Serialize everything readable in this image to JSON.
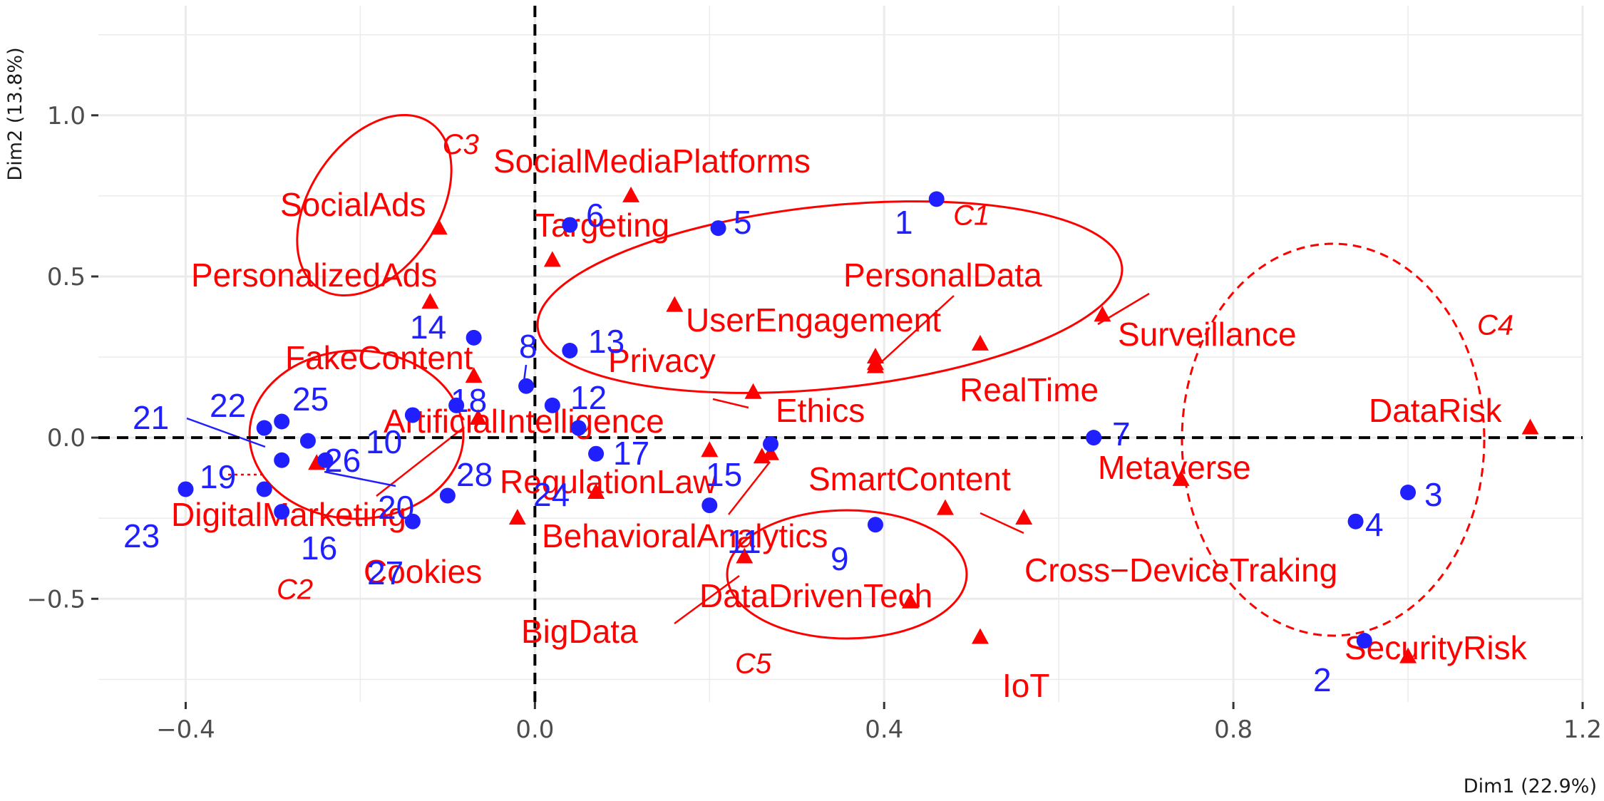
{
  "chart_data": {
    "type": "scatter",
    "xlabel": "Dim1 (22.9%)",
    "ylabel": "Dim2 (13.8%)",
    "xlim": [
      -0.5,
      1.2
    ],
    "ylim": [
      -0.82,
      1.34
    ],
    "x_ticks": [
      -0.4,
      0.0,
      0.4,
      0.8,
      1.2
    ],
    "x_tick_labels": [
      "−0.4",
      "0.0",
      "0.4",
      "0.8",
      "1.2"
    ],
    "y_ticks": [
      -0.5,
      0.0,
      0.5,
      1.0
    ],
    "y_tick_labels": [
      "−0.5",
      "0.0",
      "0.5",
      "1.0"
    ],
    "grid": true,
    "colors": {
      "words": "#ff0000",
      "documents": "#1f1fff",
      "reference_lines": "#000000",
      "panel_grid": "#ebebeb"
    },
    "words": [
      {
        "label": "SocialMediaPlatforms",
        "x": 0.11,
        "y": 0.75
      },
      {
        "label": "SocialAds",
        "x": -0.11,
        "y": 0.65
      },
      {
        "label": "Targeting",
        "x": 0.02,
        "y": 0.55
      },
      {
        "label": "PersonalizedAds",
        "x": -0.12,
        "y": 0.42
      },
      {
        "label": "UserEngagement",
        "x": 0.16,
        "y": 0.41
      },
      {
        "label": "PersonalData",
        "x": 0.39,
        "y": 0.25
      },
      {
        "label": "Surveillance",
        "x": 0.65,
        "y": 0.38
      },
      {
        "label": "RealTime",
        "x": 0.51,
        "y": 0.29
      },
      {
        "label": "FakeContent",
        "x": -0.07,
        "y": 0.19
      },
      {
        "label": "Privacy",
        "x": 0.25,
        "y": 0.14
      },
      {
        "label": "Ethics",
        "x": 0.39,
        "y": 0.22
      },
      {
        "label": "ArtificialIntelligence",
        "x": -0.065,
        "y": 0.06
      },
      {
        "label": "DataRisk",
        "x": 1.14,
        "y": 0.03
      },
      {
        "label": "RegulationLaw",
        "x": 0.2,
        "y": -0.04
      },
      {
        "label": "SmartContent",
        "x": 0.26,
        "y": -0.06
      },
      {
        "label": "Metaverse",
        "x": 0.74,
        "y": -0.13
      },
      {
        "label": "DigitalMarketing",
        "x": -0.25,
        "y": -0.08
      },
      {
        "label": "BehavioralAnalytics",
        "x": 0.07,
        "y": -0.17
      },
      {
        "label": "Cross−DeviceTraking",
        "x": 0.56,
        "y": -0.25
      },
      {
        "label": "Cookies",
        "x": -0.02,
        "y": -0.25
      },
      {
        "label": "DataDrivenTech",
        "x": 0.47,
        "y": -0.22
      },
      {
        "label": "BigData",
        "x": 0.24,
        "y": -0.37
      },
      {
        "label": "IoT",
        "x": 0.51,
        "y": -0.62
      },
      {
        "label": "SecurityRisk",
        "x": 1.0,
        "y": -0.68
      },
      {
        "label": "",
        "x": 0.43,
        "y": -0.51
      },
      {
        "label": "",
        "x": 0.39,
        "y": 0.23
      },
      {
        "label": "",
        "x": 0.27,
        "y": -0.05
      }
    ],
    "documents": [
      {
        "label": "1",
        "x": 0.46,
        "y": 0.74
      },
      {
        "label": "2",
        "x": 0.95,
        "y": -0.63
      },
      {
        "label": "3",
        "x": 1.0,
        "y": -0.17
      },
      {
        "label": "4",
        "x": 0.94,
        "y": -0.26
      },
      {
        "label": "5",
        "x": 0.21,
        "y": 0.65
      },
      {
        "label": "6",
        "x": 0.04,
        "y": 0.66
      },
      {
        "label": "7",
        "x": 0.64,
        "y": 0.0
      },
      {
        "label": "8",
        "x": -0.01,
        "y": 0.16
      },
      {
        "label": "9",
        "x": 0.39,
        "y": -0.27
      },
      {
        "label": "10",
        "x": -0.14,
        "y": 0.07
      },
      {
        "label": "11",
        "x": 0.2,
        "y": -0.21
      },
      {
        "label": "12",
        "x": 0.02,
        "y": 0.1
      },
      {
        "label": "13",
        "x": 0.04,
        "y": 0.27
      },
      {
        "label": "14",
        "x": -0.07,
        "y": 0.31
      },
      {
        "label": "15",
        "x": 0.27,
        "y": -0.02
      },
      {
        "label": "16",
        "x": -0.29,
        "y": -0.23
      },
      {
        "label": "17",
        "x": 0.05,
        "y": 0.03
      },
      {
        "label": "18",
        "x": -0.09,
        "y": 0.1
      },
      {
        "label": "19",
        "x": -0.29,
        "y": -0.07
      },
      {
        "label": "20",
        "x": -0.1,
        "y": -0.18
      },
      {
        "label": "21",
        "x": -0.31,
        "y": 0.03
      },
      {
        "label": "22",
        "x": -0.29,
        "y": 0.05
      },
      {
        "label": "23",
        "x": -0.4,
        "y": -0.16
      },
      {
        "label": "24",
        "x": 0.07,
        "y": -0.05
      },
      {
        "label": "25",
        "x": -0.26,
        "y": -0.01
      },
      {
        "label": "26",
        "x": -0.24,
        "y": -0.07
      },
      {
        "label": "27",
        "x": -0.14,
        "y": -0.26
      },
      {
        "label": "28",
        "x": -0.31,
        "y": -0.16
      }
    ],
    "clusters": [
      {
        "label": "C1",
        "lx": 0.5,
        "ly": 0.66
      },
      {
        "label": "C2",
        "lx": -0.275,
        "ly": -0.5
      },
      {
        "label": "C3",
        "lx": -0.085,
        "ly": 0.88
      },
      {
        "label": "C4",
        "lx": 1.1,
        "ly": 0.32
      },
      {
        "label": "C5",
        "lx": 0.25,
        "ly": -0.73
      }
    ]
  }
}
